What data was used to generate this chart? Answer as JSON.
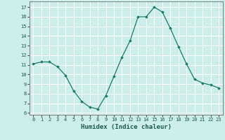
{
  "x": [
    0,
    1,
    2,
    3,
    4,
    5,
    6,
    7,
    8,
    9,
    10,
    11,
    12,
    13,
    14,
    15,
    16,
    17,
    18,
    19,
    20,
    21,
    22,
    23
  ],
  "y": [
    11.1,
    11.3,
    11.3,
    10.8,
    9.9,
    8.3,
    7.2,
    6.6,
    6.4,
    7.8,
    9.8,
    11.8,
    13.5,
    16.0,
    16.0,
    17.0,
    16.5,
    14.8,
    12.9,
    11.1,
    9.5,
    9.1,
    8.9,
    8.6
  ],
  "line_color": "#1a7a6a",
  "marker": "D",
  "markersize": 1.8,
  "xlabel": "Humidex (Indice chaleur)",
  "xlim": [
    -0.5,
    23.5
  ],
  "ylim": [
    5.8,
    17.6
  ],
  "yticks": [
    6,
    7,
    8,
    9,
    10,
    11,
    12,
    13,
    14,
    15,
    16,
    17
  ],
  "xticks": [
    0,
    1,
    2,
    3,
    4,
    5,
    6,
    7,
    8,
    9,
    10,
    11,
    12,
    13,
    14,
    15,
    16,
    17,
    18,
    19,
    20,
    21,
    22,
    23
  ],
  "bg_color": "#cceee8",
  "grid_color": "#ffffff",
  "tick_labelsize": 5,
  "xlabel_fontsize": 6.5
}
